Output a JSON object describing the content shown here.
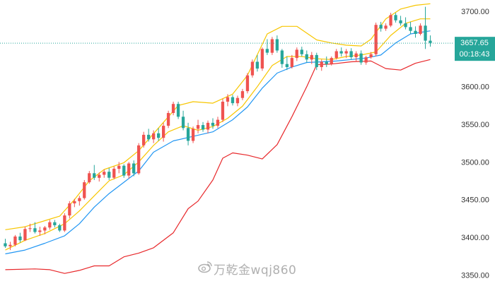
{
  "chart_data": {
    "type": "candlestick",
    "y_axis": {
      "position": "right",
      "range": [
        3340,
        3715
      ],
      "ticks": [
        {
          "value": 3350,
          "label": "3350.00"
        },
        {
          "value": 3400,
          "label": "3400.00"
        },
        {
          "value": 3450,
          "label": "3450.00"
        },
        {
          "value": 3500,
          "label": "3500.00"
        },
        {
          "value": 3550,
          "label": "3550.00"
        },
        {
          "value": 3600,
          "label": "3600.00"
        },
        {
          "value": 3700,
          "label": "3700.00"
        }
      ]
    },
    "current_price": {
      "value": 3657.65,
      "label": "3657.65",
      "countdown": "00:18:43",
      "color": "#26a69a"
    },
    "colors": {
      "up": "#ef5350",
      "down": "#26a69a",
      "bb_upper": "#f7c600",
      "bb_lower": "#e8282b",
      "ma_fast": "#2196f3",
      "ma_mid": "#f7c600",
      "axis_text": "#333333"
    },
    "candles": [
      [
        3392,
        3398,
        3386,
        3388
      ],
      [
        3388,
        3394,
        3383,
        3390
      ],
      [
        3390,
        3403,
        3388,
        3401
      ],
      [
        3401,
        3406,
        3393,
        3396
      ],
      [
        3396,
        3414,
        3395,
        3411
      ],
      [
        3411,
        3418,
        3407,
        3412
      ],
      [
        3412,
        3420,
        3405,
        3407
      ],
      [
        3407,
        3414,
        3402,
        3409
      ],
      [
        3409,
        3415,
        3404,
        3413
      ],
      [
        3413,
        3423,
        3410,
        3420
      ],
      [
        3420,
        3423,
        3413,
        3416
      ],
      [
        3416,
        3418,
        3407,
        3409
      ],
      [
        3409,
        3432,
        3407,
        3429
      ],
      [
        3429,
        3448,
        3425,
        3445
      ],
      [
        3445,
        3451,
        3440,
        3448
      ],
      [
        3448,
        3455,
        3442,
        3452
      ],
      [
        3452,
        3476,
        3450,
        3473
      ],
      [
        3473,
        3488,
        3471,
        3485
      ],
      [
        3485,
        3496,
        3476,
        3479
      ],
      [
        3479,
        3486,
        3474,
        3483
      ],
      [
        3483,
        3490,
        3479,
        3487
      ],
      [
        3487,
        3492,
        3476,
        3479
      ],
      [
        3479,
        3494,
        3477,
        3491
      ],
      [
        3491,
        3500,
        3485,
        3495
      ],
      [
        3495,
        3497,
        3479,
        3482
      ],
      [
        3482,
        3500,
        3478,
        3498
      ],
      [
        3498,
        3502,
        3481,
        3485
      ],
      [
        3485,
        3525,
        3483,
        3522
      ],
      [
        3522,
        3540,
        3519,
        3536
      ],
      [
        3536,
        3544,
        3527,
        3530
      ],
      [
        3530,
        3542,
        3525,
        3538
      ],
      [
        3538,
        3545,
        3528,
        3532
      ],
      [
        3532,
        3552,
        3527,
        3548
      ],
      [
        3548,
        3568,
        3545,
        3565
      ],
      [
        3565,
        3580,
        3562,
        3577
      ],
      [
        3577,
        3580,
        3557,
        3560
      ],
      [
        3560,
        3568,
        3542,
        3545
      ],
      [
        3545,
        3552,
        3522,
        3528
      ],
      [
        3528,
        3547,
        3525,
        3544
      ],
      [
        3544,
        3556,
        3538,
        3549
      ],
      [
        3549,
        3553,
        3540,
        3543
      ],
      [
        3543,
        3555,
        3538,
        3552
      ],
      [
        3552,
        3558,
        3544,
        3548
      ],
      [
        3548,
        3560,
        3545,
        3556
      ],
      [
        3556,
        3584,
        3553,
        3580
      ],
      [
        3580,
        3590,
        3574,
        3586
      ],
      [
        3586,
        3589,
        3575,
        3578
      ],
      [
        3578,
        3588,
        3574,
        3585
      ],
      [
        3585,
        3597,
        3582,
        3594
      ],
      [
        3594,
        3618,
        3591,
        3615
      ],
      [
        3615,
        3636,
        3612,
        3633
      ],
      [
        3633,
        3642,
        3620,
        3624
      ],
      [
        3624,
        3652,
        3621,
        3650
      ],
      [
        3650,
        3663,
        3642,
        3645
      ],
      [
        3645,
        3666,
        3642,
        3663
      ],
      [
        3663,
        3668,
        3645,
        3648
      ],
      [
        3648,
        3650,
        3625,
        3630
      ],
      [
        3630,
        3640,
        3622,
        3626
      ],
      [
        3626,
        3642,
        3624,
        3638
      ],
      [
        3638,
        3652,
        3634,
        3649
      ],
      [
        3649,
        3653,
        3640,
        3643
      ],
      [
        3643,
        3648,
        3632,
        3636
      ],
      [
        3636,
        3646,
        3630,
        3642
      ],
      [
        3642,
        3645,
        3622,
        3626
      ],
      [
        3626,
        3636,
        3621,
        3633
      ],
      [
        3633,
        3640,
        3626,
        3630
      ],
      [
        3630,
        3640,
        3628,
        3638
      ],
      [
        3638,
        3650,
        3636,
        3647
      ],
      [
        3647,
        3652,
        3640,
        3644
      ],
      [
        3644,
        3650,
        3638,
        3647
      ],
      [
        3647,
        3651,
        3636,
        3639
      ],
      [
        3639,
        3647,
        3633,
        3644
      ],
      [
        3644,
        3648,
        3629,
        3632
      ],
      [
        3632,
        3641,
        3629,
        3639
      ],
      [
        3639,
        3646,
        3637,
        3643
      ],
      [
        3643,
        3685,
        3640,
        3682
      ],
      [
        3682,
        3686,
        3673,
        3677
      ],
      [
        3677,
        3684,
        3674,
        3681
      ],
      [
        3681,
        3698,
        3679,
        3695
      ],
      [
        3695,
        3698,
        3685,
        3688
      ],
      [
        3688,
        3694,
        3681,
        3684
      ],
      [
        3684,
        3692,
        3676,
        3679
      ],
      [
        3679,
        3686,
        3670,
        3674
      ],
      [
        3674,
        3680,
        3665,
        3670
      ],
      [
        3670,
        3684,
        3668,
        3681
      ],
      [
        3681,
        3706,
        3650,
        3661
      ],
      [
        3661,
        3668,
        3653,
        3658
      ]
    ],
    "bb_upper": [
      [
        0,
        3410
      ],
      [
        4,
        3414
      ],
      [
        8,
        3422
      ],
      [
        11,
        3428
      ],
      [
        14,
        3450
      ],
      [
        17,
        3475
      ],
      [
        20,
        3490
      ],
      [
        24,
        3499
      ],
      [
        27,
        3515
      ],
      [
        31,
        3545
      ],
      [
        35,
        3575
      ],
      [
        38,
        3580
      ],
      [
        42,
        3578
      ],
      [
        46,
        3590
      ],
      [
        49,
        3615
      ],
      [
        53,
        3670
      ],
      [
        56,
        3680
      ],
      [
        59,
        3680
      ],
      [
        63,
        3662
      ],
      [
        66,
        3658
      ],
      [
        69,
        3655
      ],
      [
        72,
        3654
      ],
      [
        74,
        3663
      ],
      [
        77,
        3690
      ],
      [
        80,
        3703
      ],
      [
        83,
        3708
      ],
      [
        86,
        3710
      ]
    ],
    "bb_lower": [
      [
        0,
        3357
      ],
      [
        6,
        3358
      ],
      [
        9,
        3357
      ],
      [
        12,
        3352
      ],
      [
        15,
        3356
      ],
      [
        18,
        3362
      ],
      [
        21,
        3362
      ],
      [
        24,
        3374
      ],
      [
        27,
        3379
      ],
      [
        30,
        3386
      ],
      [
        34,
        3406
      ],
      [
        37,
        3438
      ],
      [
        39,
        3448
      ],
      [
        42,
        3476
      ],
      [
        44,
        3505
      ],
      [
        46,
        3512
      ],
      [
        49,
        3509
      ],
      [
        52,
        3504
      ],
      [
        55,
        3523
      ],
      [
        58,
        3560
      ],
      [
        61,
        3600
      ],
      [
        63,
        3629
      ],
      [
        66,
        3630
      ],
      [
        70,
        3633
      ],
      [
        74,
        3634
      ],
      [
        77,
        3624
      ],
      [
        80,
        3622
      ],
      [
        83,
        3631
      ],
      [
        86,
        3636
      ]
    ],
    "ma_fast": [
      [
        0,
        3378
      ],
      [
        4,
        3383
      ],
      [
        8,
        3392
      ],
      [
        12,
        3402
      ],
      [
        15,
        3418
      ],
      [
        18,
        3440
      ],
      [
        21,
        3458
      ],
      [
        24,
        3473
      ],
      [
        27,
        3488
      ],
      [
        30,
        3513
      ],
      [
        34,
        3528
      ],
      [
        38,
        3534
      ],
      [
        42,
        3540
      ],
      [
        46,
        3556
      ],
      [
        49,
        3573
      ],
      [
        52,
        3598
      ],
      [
        55,
        3618
      ],
      [
        58,
        3626
      ],
      [
        61,
        3632
      ],
      [
        64,
        3633
      ],
      [
        67,
        3634
      ],
      [
        70,
        3636
      ],
      [
        73,
        3638
      ],
      [
        76,
        3642
      ],
      [
        79,
        3658
      ],
      [
        82,
        3670
      ],
      [
        86,
        3674
      ]
    ],
    "ma_mid": [
      [
        0,
        3383
      ],
      [
        4,
        3396
      ],
      [
        8,
        3405
      ],
      [
        12,
        3418
      ],
      [
        15,
        3435
      ],
      [
        18,
        3455
      ],
      [
        21,
        3475
      ],
      [
        24,
        3483
      ],
      [
        27,
        3500
      ],
      [
        30,
        3522
      ],
      [
        33,
        3540
      ],
      [
        36,
        3548
      ],
      [
        39,
        3542
      ],
      [
        42,
        3547
      ],
      [
        45,
        3558
      ],
      [
        48,
        3574
      ],
      [
        51,
        3600
      ],
      [
        54,
        3628
      ],
      [
        57,
        3640
      ],
      [
        60,
        3640
      ],
      [
        63,
        3637
      ],
      [
        66,
        3636
      ],
      [
        69,
        3640
      ],
      [
        72,
        3642
      ],
      [
        75,
        3646
      ],
      [
        78,
        3668
      ],
      [
        81,
        3684
      ],
      [
        84,
        3690
      ],
      [
        86,
        3690
      ]
    ]
  },
  "watermark": {
    "text": "万乾金wqj860",
    "logo_icon": "weibo-logo-icon"
  }
}
